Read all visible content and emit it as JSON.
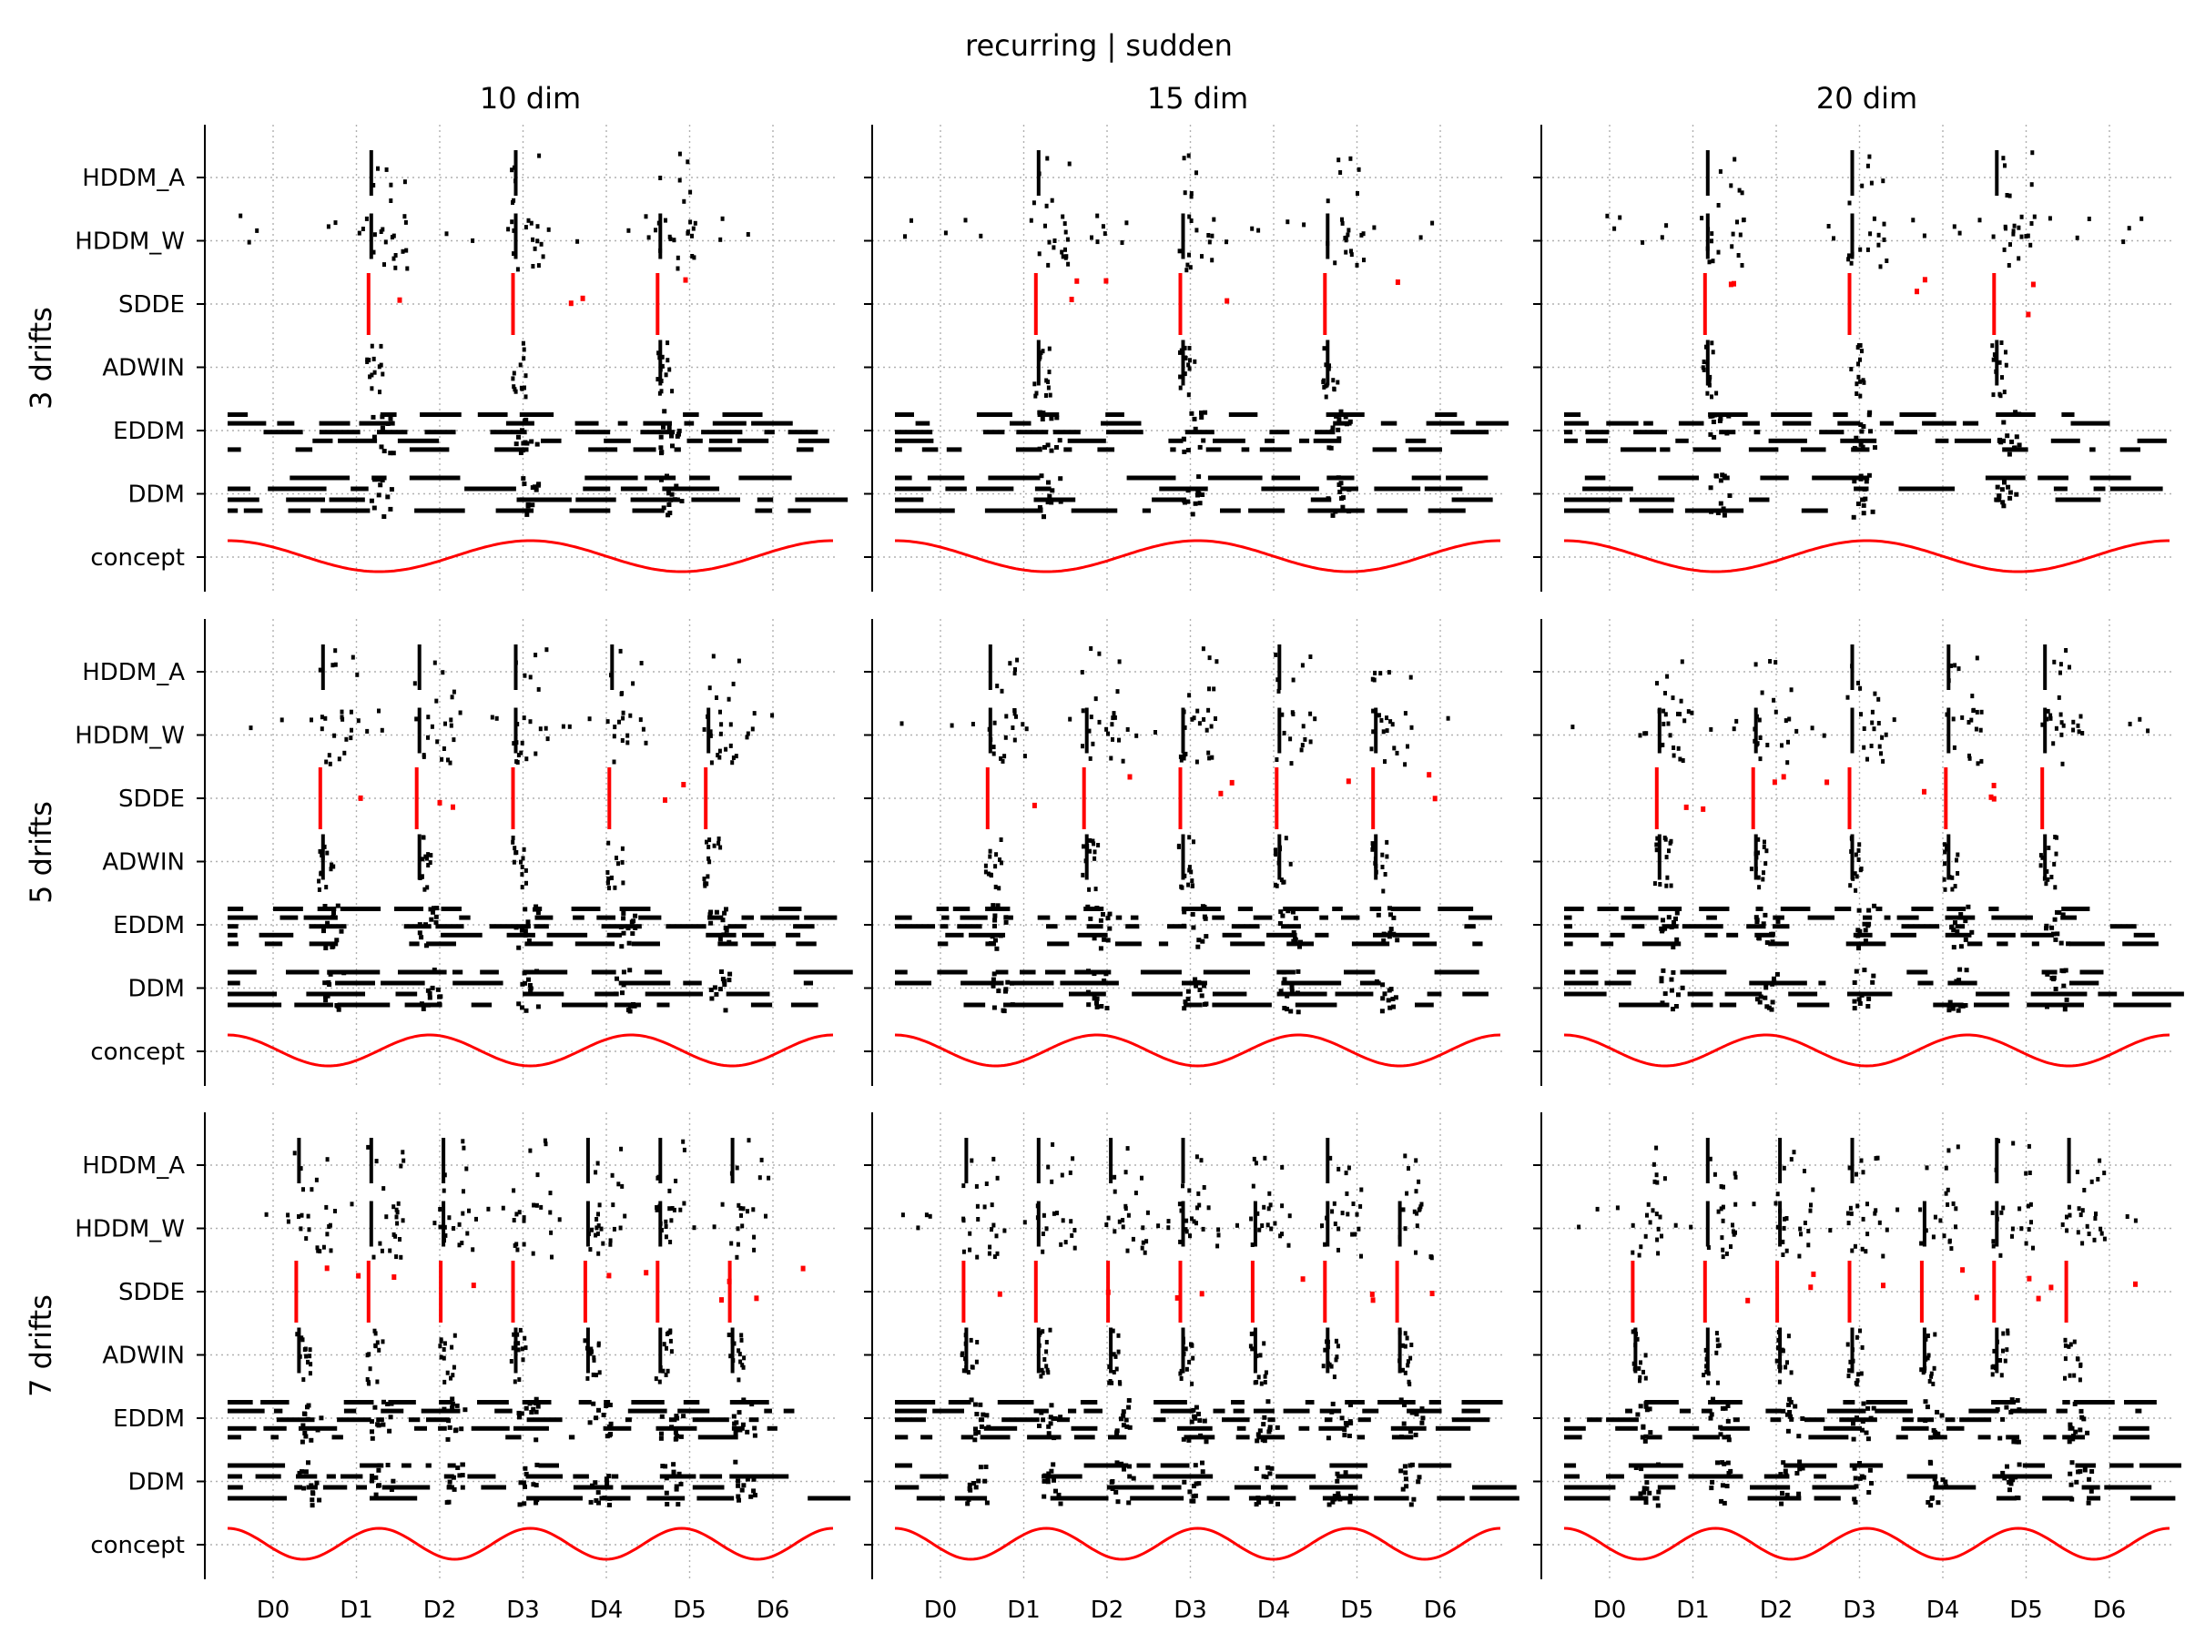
{
  "chart_data": {
    "type": "scatter",
    "title": "recurring | sudden",
    "columns": [
      "10 dim",
      "15 dim",
      "20 dim"
    ],
    "rows": [
      "3 drifts",
      "5 drifts",
      "7 drifts"
    ],
    "y_categories": [
      "concept",
      "DDM",
      "EDDM",
      "ADWIN",
      "SDDE",
      "HDDM_W",
      "HDDM_A"
    ],
    "x_ticks": [
      "D0",
      "D1",
      "D2",
      "D3",
      "D4",
      "D5",
      "D6"
    ],
    "highlight_series": "SDDE",
    "grid": true,
    "colors": {
      "detections": "#000000",
      "sdde": "#ff0000",
      "concept": "#ff0000",
      "grid": "#b0b0b0"
    }
  }
}
